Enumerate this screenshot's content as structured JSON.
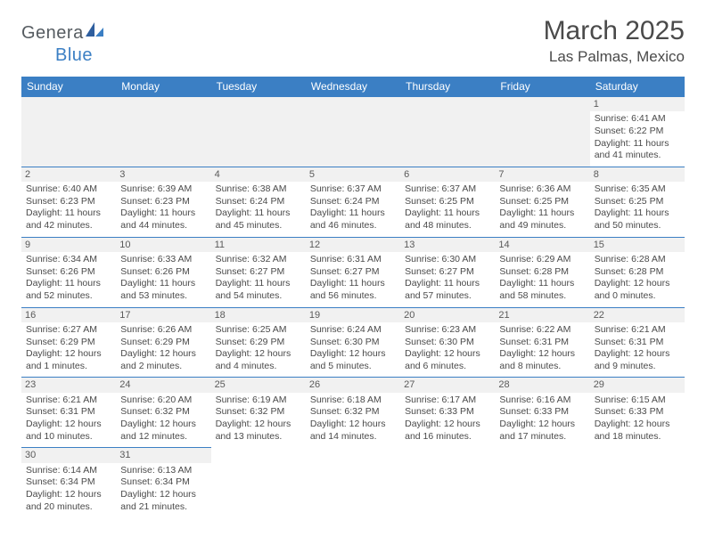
{
  "logo": {
    "gen": "Genera",
    "blue": "Blue"
  },
  "title": "March 2025",
  "location": "Las Palmas, Mexico",
  "colors": {
    "header_bg": "#3b7fc4",
    "header_fg": "#ffffff",
    "gray_bg": "#f1f1f1",
    "text": "#4a4a4a",
    "border": "#3b7fc4"
  },
  "days_of_week": [
    "Sunday",
    "Monday",
    "Tuesday",
    "Wednesday",
    "Thursday",
    "Friday",
    "Saturday"
  ],
  "weeks": [
    [
      null,
      null,
      null,
      null,
      null,
      null,
      {
        "n": "1",
        "sr": "6:41 AM",
        "ss": "6:22 PM",
        "dh": "11",
        "dm": "41"
      }
    ],
    [
      {
        "n": "2",
        "sr": "6:40 AM",
        "ss": "6:23 PM",
        "dh": "11",
        "dm": "42"
      },
      {
        "n": "3",
        "sr": "6:39 AM",
        "ss": "6:23 PM",
        "dh": "11",
        "dm": "44"
      },
      {
        "n": "4",
        "sr": "6:38 AM",
        "ss": "6:24 PM",
        "dh": "11",
        "dm": "45"
      },
      {
        "n": "5",
        "sr": "6:37 AM",
        "ss": "6:24 PM",
        "dh": "11",
        "dm": "46"
      },
      {
        "n": "6",
        "sr": "6:37 AM",
        "ss": "6:25 PM",
        "dh": "11",
        "dm": "48"
      },
      {
        "n": "7",
        "sr": "6:36 AM",
        "ss": "6:25 PM",
        "dh": "11",
        "dm": "49"
      },
      {
        "n": "8",
        "sr": "6:35 AM",
        "ss": "6:25 PM",
        "dh": "11",
        "dm": "50"
      }
    ],
    [
      {
        "n": "9",
        "sr": "6:34 AM",
        "ss": "6:26 PM",
        "dh": "11",
        "dm": "52"
      },
      {
        "n": "10",
        "sr": "6:33 AM",
        "ss": "6:26 PM",
        "dh": "11",
        "dm": "53"
      },
      {
        "n": "11",
        "sr": "6:32 AM",
        "ss": "6:27 PM",
        "dh": "11",
        "dm": "54"
      },
      {
        "n": "12",
        "sr": "6:31 AM",
        "ss": "6:27 PM",
        "dh": "11",
        "dm": "56"
      },
      {
        "n": "13",
        "sr": "6:30 AM",
        "ss": "6:27 PM",
        "dh": "11",
        "dm": "57"
      },
      {
        "n": "14",
        "sr": "6:29 AM",
        "ss": "6:28 PM",
        "dh": "11",
        "dm": "58"
      },
      {
        "n": "15",
        "sr": "6:28 AM",
        "ss": "6:28 PM",
        "dh": "12",
        "dm": "0"
      }
    ],
    [
      {
        "n": "16",
        "sr": "6:27 AM",
        "ss": "6:29 PM",
        "dh": "12",
        "dm": "1"
      },
      {
        "n": "17",
        "sr": "6:26 AM",
        "ss": "6:29 PM",
        "dh": "12",
        "dm": "2"
      },
      {
        "n": "18",
        "sr": "6:25 AM",
        "ss": "6:29 PM",
        "dh": "12",
        "dm": "4"
      },
      {
        "n": "19",
        "sr": "6:24 AM",
        "ss": "6:30 PM",
        "dh": "12",
        "dm": "5"
      },
      {
        "n": "20",
        "sr": "6:23 AM",
        "ss": "6:30 PM",
        "dh": "12",
        "dm": "6"
      },
      {
        "n": "21",
        "sr": "6:22 AM",
        "ss": "6:31 PM",
        "dh": "12",
        "dm": "8"
      },
      {
        "n": "22",
        "sr": "6:21 AM",
        "ss": "6:31 PM",
        "dh": "12",
        "dm": "9"
      }
    ],
    [
      {
        "n": "23",
        "sr": "6:21 AM",
        "ss": "6:31 PM",
        "dh": "12",
        "dm": "10"
      },
      {
        "n": "24",
        "sr": "6:20 AM",
        "ss": "6:32 PM",
        "dh": "12",
        "dm": "12"
      },
      {
        "n": "25",
        "sr": "6:19 AM",
        "ss": "6:32 PM",
        "dh": "12",
        "dm": "13"
      },
      {
        "n": "26",
        "sr": "6:18 AM",
        "ss": "6:32 PM",
        "dh": "12",
        "dm": "14"
      },
      {
        "n": "27",
        "sr": "6:17 AM",
        "ss": "6:33 PM",
        "dh": "12",
        "dm": "16"
      },
      {
        "n": "28",
        "sr": "6:16 AM",
        "ss": "6:33 PM",
        "dh": "12",
        "dm": "17"
      },
      {
        "n": "29",
        "sr": "6:15 AM",
        "ss": "6:33 PM",
        "dh": "12",
        "dm": "18"
      }
    ],
    [
      {
        "n": "30",
        "sr": "6:14 AM",
        "ss": "6:34 PM",
        "dh": "12",
        "dm": "20"
      },
      {
        "n": "31",
        "sr": "6:13 AM",
        "ss": "6:34 PM",
        "dh": "12",
        "dm": "21"
      },
      null,
      null,
      null,
      null,
      null
    ]
  ]
}
